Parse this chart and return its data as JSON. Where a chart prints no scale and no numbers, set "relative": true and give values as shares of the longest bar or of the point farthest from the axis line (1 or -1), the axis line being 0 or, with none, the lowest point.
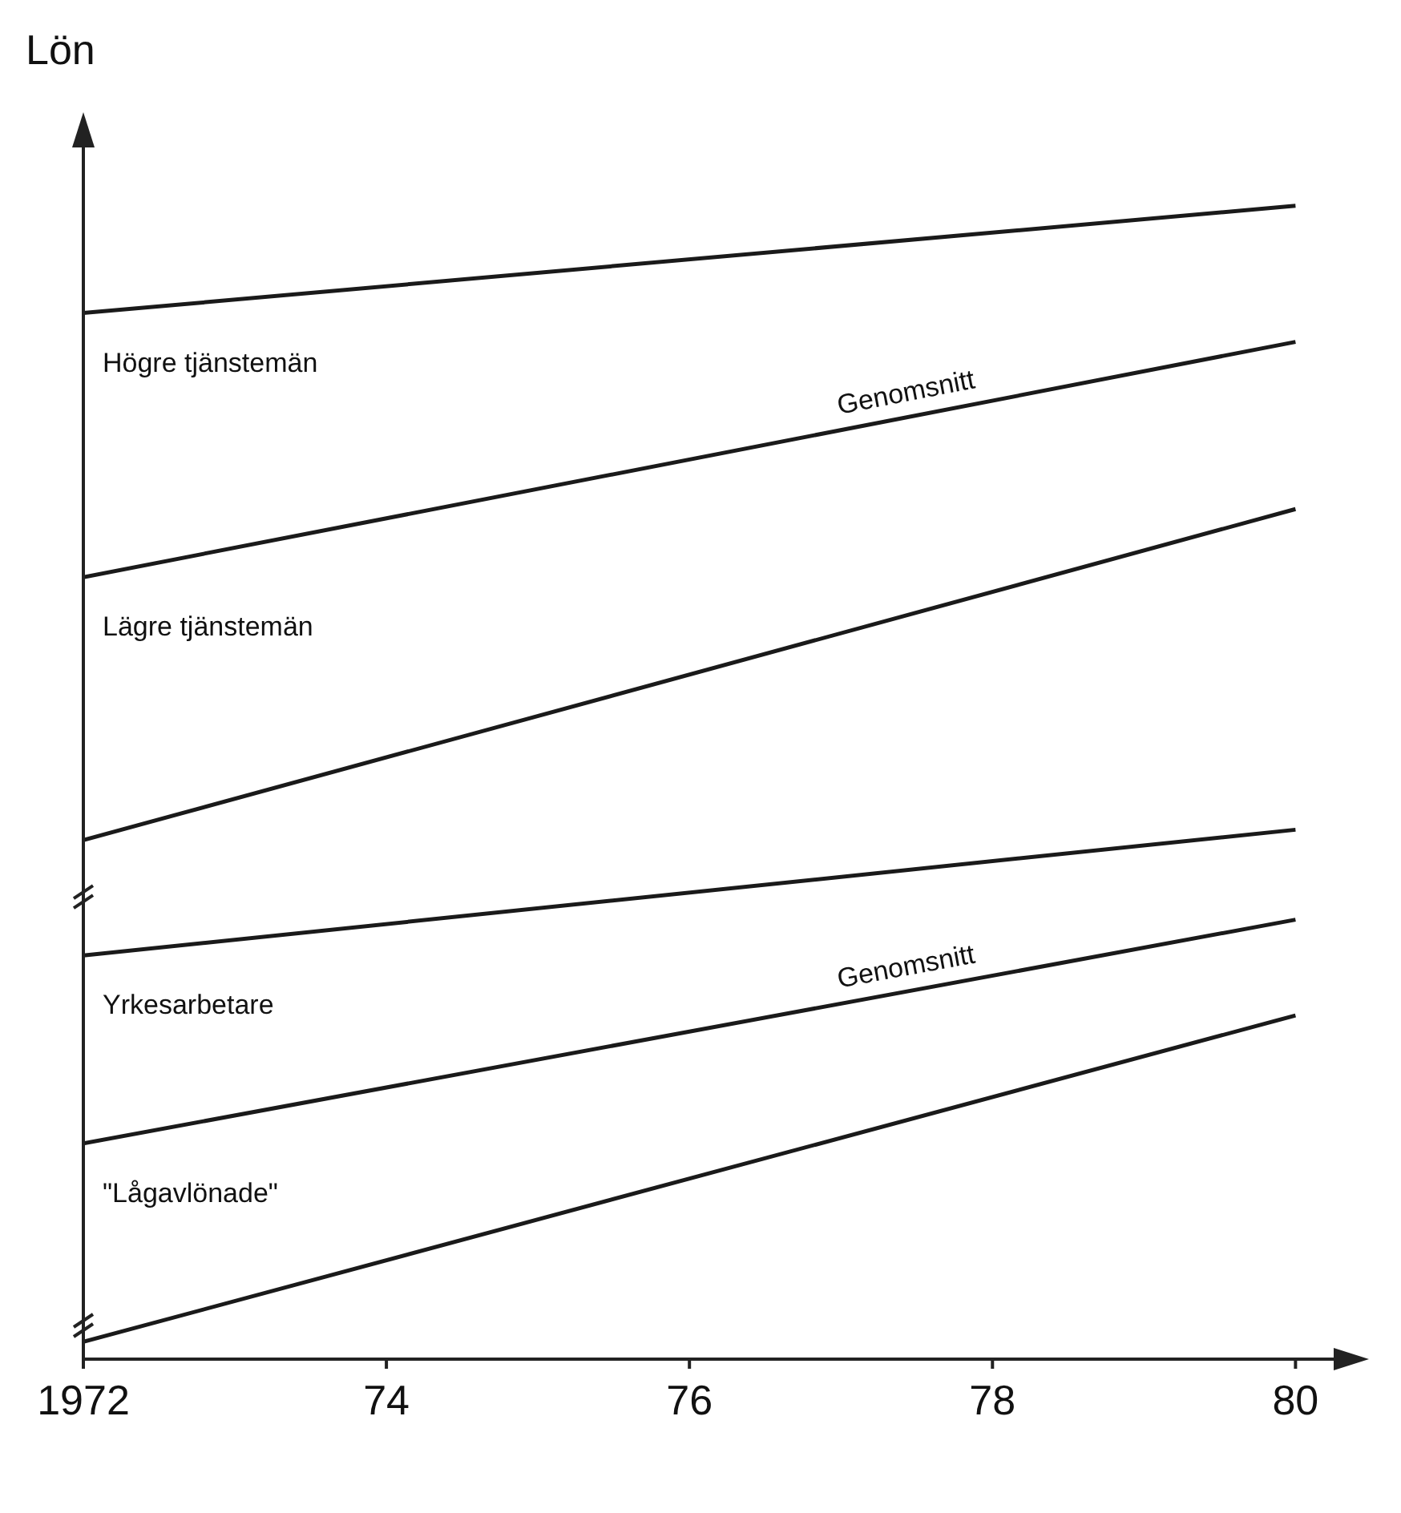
{
  "chart_data": {
    "type": "line",
    "relative": true,
    "ylabel": "Lön",
    "x": [
      1972,
      1980
    ],
    "xlim": [
      1972,
      1980.4
    ],
    "xticks": [
      {
        "value": 1972,
        "label": "1972"
      },
      {
        "value": 1974,
        "label": "74"
      },
      {
        "value": 1976,
        "label": "76"
      },
      {
        "value": 1978,
        "label": "78"
      },
      {
        "value": 1980,
        "label": "80"
      }
    ],
    "series": [
      {
        "color": "#1a1a1a",
        "values": [
          0.907,
          1.0
        ]
      },
      {
        "name": "Genomsnitt",
        "color": "#1a1a1a",
        "values": [
          0.678,
          0.882
        ]
      },
      {
        "color": "#1a1a1a",
        "values": [
          0.45,
          0.737
        ]
      },
      {
        "color": "#1a1a1a",
        "values": [
          0.35,
          0.459
        ]
      },
      {
        "name": "Genomsnitt",
        "color": "#1a1a1a",
        "values": [
          0.187,
          0.381
        ]
      },
      {
        "color": "#1a1a1a",
        "values": [
          0.015,
          0.298
        ]
      }
    ],
    "annotations": [
      "Högre tjänstemän",
      "Lägre tjänstemän",
      "Yrkesarbetare",
      "\"Lågavlönade\""
    ],
    "legend": false,
    "grid": false,
    "marker": "none",
    "line_style": "solid"
  }
}
